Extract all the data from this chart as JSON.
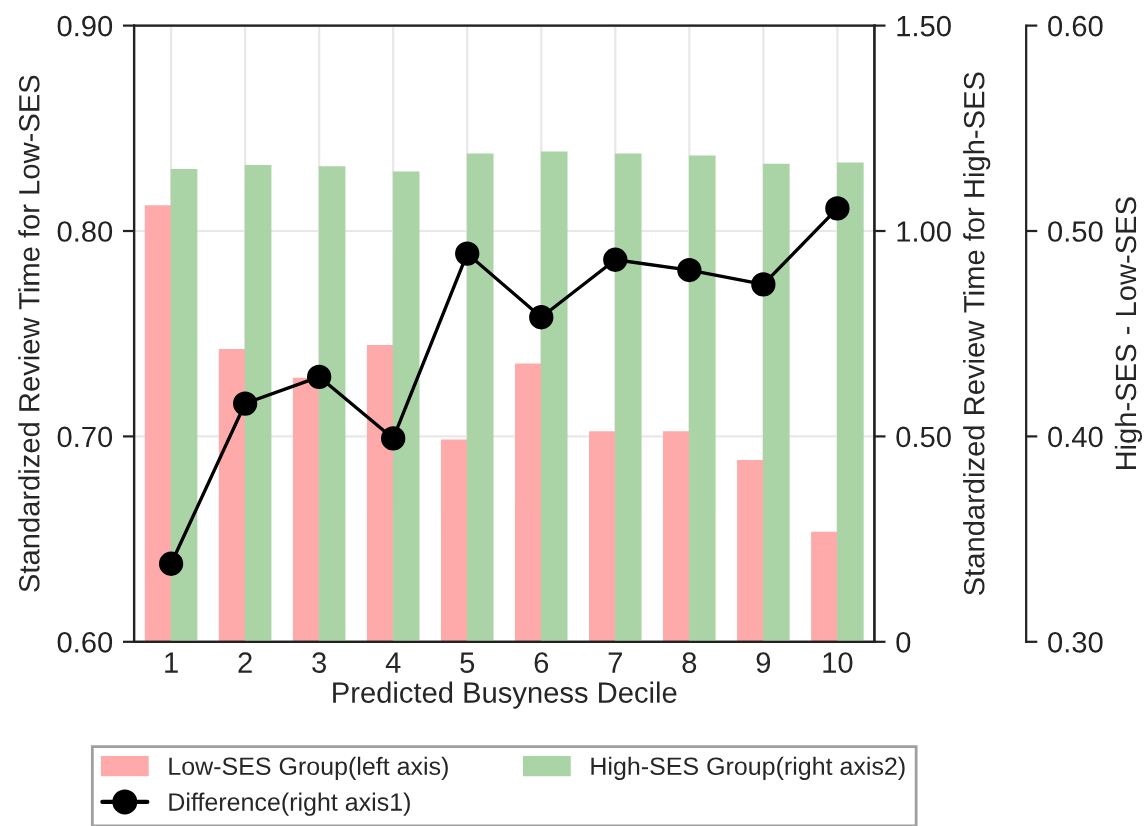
{
  "chart_data": {
    "type": "bar",
    "xlabel": "Predicted Busyness Decile",
    "ylabel": "Standardized Review Time for Low-SES",
    "y2label": "Standardized Review Time for High-SES",
    "y3label": "High-SES - Low-SES",
    "categories": [
      "1",
      "2",
      "3",
      "4",
      "5",
      "6",
      "7",
      "8",
      "9",
      "10"
    ],
    "series": [
      {
        "name": "Low-SES Group(left axis)",
        "color": "#ffaaaa",
        "values": [
          0.812,
          0.742,
          0.728,
          0.744,
          0.698,
          0.735,
          0.702,
          0.702,
          0.688,
          0.653
        ]
      },
      {
        "name": "High-SES Group(right axis2)",
        "axis": "y2",
        "color": "#aad4a5",
        "values": [
          1.148,
          1.158,
          1.155,
          1.142,
          1.186,
          1.191,
          1.186,
          1.181,
          1.161,
          1.164
        ]
      },
      {
        "name": "Difference(right axis1)",
        "type": "line",
        "axis": "y3",
        "color": "#000000",
        "marker": "circle",
        "line_style": "solid",
        "values": [
          0.338,
          0.416,
          0.429,
          0.399,
          0.489,
          0.458,
          0.486,
          0.481,
          0.474,
          0.511
        ]
      }
    ],
    "ylim": [
      0.6,
      0.9
    ],
    "yticks": [
      {
        "value": 0.6,
        "label": "0.60"
      },
      {
        "value": 0.7,
        "label": "0.70"
      },
      {
        "value": 0.8,
        "label": "0.80"
      },
      {
        "value": 0.9,
        "label": "0.90"
      }
    ],
    "y2lim": [
      0,
      1.5
    ],
    "y2ticks": [
      0,
      {
        "value": 0.5,
        "label": "0.50"
      },
      {
        "value": 1.0,
        "label": "1.00"
      },
      {
        "value": 1.5,
        "label": "1.50"
      }
    ],
    "y3lim": [
      0.3,
      0.6
    ],
    "y3ticks": [
      {
        "value": 0.3,
        "label": "0.30"
      },
      {
        "value": 0.4,
        "label": "0.40"
      },
      {
        "value": 0.5,
        "label": "0.50"
      },
      {
        "value": 0.6,
        "label": "0.60"
      }
    ],
    "grid": true,
    "legend": "bottom"
  }
}
